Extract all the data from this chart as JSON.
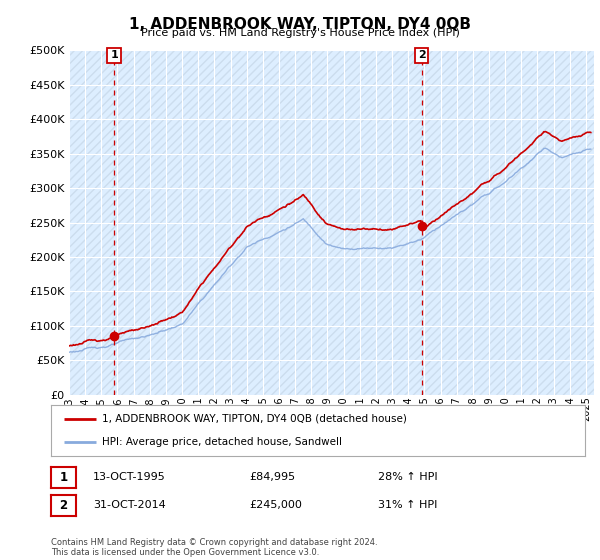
{
  "title": "1, ADDENBROOK WAY, TIPTON, DY4 0QB",
  "subtitle": "Price paid vs. HM Land Registry's House Price Index (HPI)",
  "legend_line1": "1, ADDENBROOK WAY, TIPTON, DY4 0QB (detached house)",
  "legend_line2": "HPI: Average price, detached house, Sandwell",
  "annotation1": {
    "num": "1",
    "date": "13-OCT-1995",
    "price": "£84,995",
    "pct": "28% ↑ HPI"
  },
  "annotation2": {
    "num": "2",
    "date": "31-OCT-2014",
    "price": "£245,000",
    "pct": "31% ↑ HPI"
  },
  "footer": "Contains HM Land Registry data © Crown copyright and database right 2024.\nThis data is licensed under the Open Government Licence v3.0.",
  "red_color": "#cc0000",
  "blue_color": "#88aadd",
  "background_plot": "#ddeeff",
  "background_fig": "#ffffff",
  "ylim": [
    0,
    500000
  ],
  "yticks": [
    0,
    50000,
    100000,
    150000,
    200000,
    250000,
    300000,
    350000,
    400000,
    450000,
    500000
  ],
  "sale1_x": 1995.79,
  "sale1_y": 84995,
  "sale2_x": 2014.83,
  "sale2_y": 245000,
  "xlim_start": 1993.0,
  "xlim_end": 2025.5
}
